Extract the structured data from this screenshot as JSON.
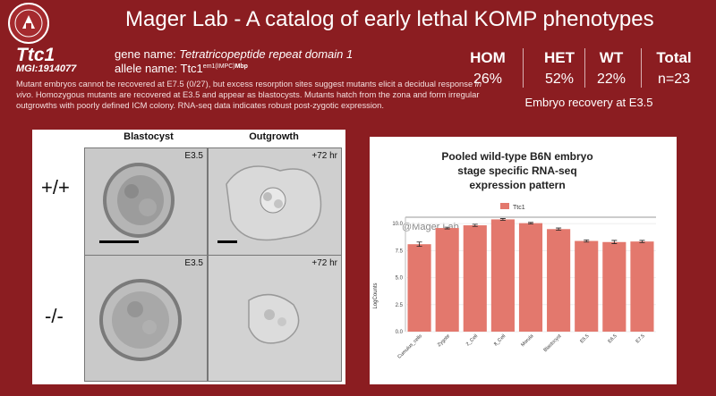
{
  "header": {
    "title": "Mager Lab - A catalog of early lethal KOMP phenotypes",
    "logo_icon": "university-seal-icon"
  },
  "gene": {
    "symbol": "Ttc1",
    "mgi": "MGI:1914077",
    "gene_name_label": "gene name:",
    "gene_name": "Tetratricopeptide repeat domain 1",
    "allele_label": "allele name:",
    "allele_base": "Ttc1",
    "allele_sup1": "em1(IMPC)",
    "allele_sup2": "Mbp"
  },
  "description": {
    "part1": "Mutant embryos cannot be recovered at E7.5 (0/27), but excess resorption sites suggest mutants elicit a decidual response ",
    "emph": "in vivo",
    "part2": ". Homozygous mutants are recovered at E3.5 and appear as blastocysts. Mutants hatch from the zona and form irregular outgrowths with poorly defined ICM colony. RNA-seq data indicates robust post-zygotic expression."
  },
  "stats": {
    "columns": [
      {
        "label": "HOM",
        "value": "26%"
      },
      {
        "label": "HET",
        "value": "52%"
      },
      {
        "label": "WT",
        "value": "22%"
      },
      {
        "label": "Total",
        "value": "n=23"
      }
    ],
    "caption": "Embryo recovery at E3.5"
  },
  "micrographs": {
    "col1": "Blastocyst",
    "col2": "Outgrowth",
    "rows": [
      {
        "genotype": "+/+",
        "stage1": "E3.5",
        "stage2": "+72 hr"
      },
      {
        "genotype": "-/-",
        "stage1": "E3.5",
        "stage2": "+72 hr"
      }
    ]
  },
  "chart_data": {
    "type": "bar",
    "title_lines": [
      "Pooled wild-type B6N embryo",
      "stage specific RNA-seq",
      "expression pattern"
    ],
    "legend": "Ttc1",
    "watermark": "@Mager Lab",
    "ylabel": "LogCounts",
    "ylim": [
      0,
      10.6
    ],
    "yticks": [
      "0.0",
      "2.5",
      "5.0",
      "7.5",
      "10.0"
    ],
    "categories": [
      "Cumulus_cells",
      "Zygote",
      "2_Cell",
      "8_Cell",
      "Morula",
      "Blastocyst",
      "E5.5",
      "E6.5",
      "E7.5"
    ],
    "values": [
      8.1,
      9.6,
      9.85,
      10.4,
      10.05,
      9.5,
      8.4,
      8.3,
      8.35
    ],
    "errors": [
      0.2,
      0.08,
      0.1,
      0.08,
      0.07,
      0.1,
      0.1,
      0.15,
      0.1
    ],
    "bar_color": "#e3786d"
  },
  "colors": {
    "background": "#8b1d21",
    "accent_bar": "#e3786d"
  }
}
